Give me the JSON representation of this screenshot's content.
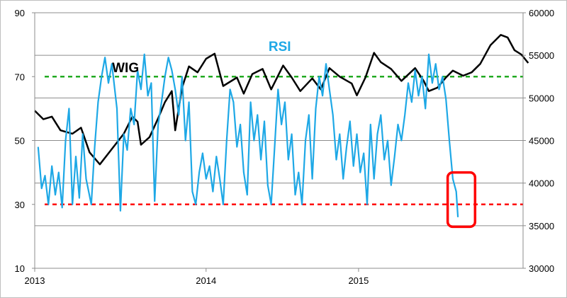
{
  "chart_data": {
    "type": "line",
    "x_axis": {
      "ticks": [
        "2013",
        "2014",
        "2015"
      ]
    },
    "y_left": {
      "ticks": [
        "10",
        "30",
        "50",
        "70",
        "90"
      ],
      "range": [
        10,
        90
      ]
    },
    "y_right": {
      "ticks": [
        "30000",
        "35000",
        "40000",
        "45000",
        "50000",
        "55000",
        "60000"
      ],
      "range": [
        30000,
        60000
      ]
    },
    "grid": true,
    "reference_lines": [
      {
        "axis": "left",
        "value": 70,
        "color": "#22aa22",
        "style": "dashed"
      },
      {
        "axis": "left",
        "value": 30,
        "color": "#ff0000",
        "style": "dashed"
      }
    ],
    "highlight_box": {
      "color": "#ff0000",
      "covers": "end of RSI series (2015)"
    },
    "series": [
      {
        "name": "WIG",
        "axis": "right",
        "color": "#000000",
        "points": [
          [
            2013.0,
            48500
          ],
          [
            2013.05,
            47500
          ],
          [
            2013.1,
            47800
          ],
          [
            2013.15,
            46200
          ],
          [
            2013.22,
            45800
          ],
          [
            2013.27,
            46500
          ],
          [
            2013.32,
            43600
          ],
          [
            2013.38,
            42200
          ],
          [
            2013.45,
            44000
          ],
          [
            2013.52,
            45800
          ],
          [
            2013.57,
            47800
          ],
          [
            2013.6,
            47200
          ],
          [
            2013.62,
            44500
          ],
          [
            2013.67,
            45400
          ],
          [
            2013.72,
            47600
          ],
          [
            2013.76,
            49500
          ],
          [
            2013.8,
            50800
          ],
          [
            2013.82,
            46200
          ],
          [
            2013.86,
            51200
          ],
          [
            2013.9,
            53700
          ],
          [
            2013.95,
            53000
          ],
          [
            2014.0,
            54600
          ],
          [
            2014.05,
            55200
          ],
          [
            2014.1,
            51400
          ],
          [
            2014.18,
            52400
          ],
          [
            2014.22,
            50500
          ],
          [
            2014.27,
            52800
          ],
          [
            2014.33,
            53400
          ],
          [
            2014.38,
            51000
          ],
          [
            2014.45,
            53800
          ],
          [
            2014.5,
            52400
          ],
          [
            2014.55,
            50800
          ],
          [
            2014.62,
            52300
          ],
          [
            2014.67,
            51000
          ],
          [
            2014.72,
            53500
          ],
          [
            2014.78,
            52500
          ],
          [
            2014.85,
            51700
          ],
          [
            2014.88,
            50300
          ],
          [
            2014.93,
            52400
          ],
          [
            2014.98,
            55300
          ],
          [
            2015.02,
            54200
          ],
          [
            2015.08,
            53400
          ],
          [
            2015.14,
            52000
          ],
          [
            2015.22,
            53500
          ],
          [
            2015.27,
            52000
          ],
          [
            2015.3,
            50800
          ],
          [
            2015.35,
            51200
          ],
          [
            2015.4,
            52400
          ],
          [
            2015.44,
            53200
          ],
          [
            2015.5,
            52600
          ],
          [
            2015.55,
            53000
          ],
          [
            2015.6,
            54000
          ],
          [
            2015.66,
            56200
          ],
          [
            2015.72,
            57400
          ],
          [
            2015.76,
            57100
          ],
          [
            2015.8,
            55600
          ],
          [
            2015.84,
            55100
          ],
          [
            2015.88,
            54100
          ]
        ]
      },
      {
        "name": "RSI",
        "axis": "left",
        "color": "#1ea8e6",
        "points": [
          [
            2013.02,
            48
          ],
          [
            2013.04,
            35
          ],
          [
            2013.06,
            39
          ],
          [
            2013.08,
            30
          ],
          [
            2013.1,
            42
          ],
          [
            2013.12,
            33
          ],
          [
            2013.14,
            40
          ],
          [
            2013.16,
            29
          ],
          [
            2013.18,
            50
          ],
          [
            2013.2,
            60
          ],
          [
            2013.22,
            30
          ],
          [
            2013.24,
            45
          ],
          [
            2013.26,
            32
          ],
          [
            2013.28,
            52
          ],
          [
            2013.3,
            38
          ],
          [
            2013.33,
            30
          ],
          [
            2013.35,
            48
          ],
          [
            2013.37,
            62
          ],
          [
            2013.39,
            70
          ],
          [
            2013.41,
            76
          ],
          [
            2013.43,
            68
          ],
          [
            2013.45,
            74
          ],
          [
            2013.48,
            60
          ],
          [
            2013.5,
            28
          ],
          [
            2013.52,
            52
          ],
          [
            2013.54,
            47
          ],
          [
            2013.56,
            60
          ],
          [
            2013.58,
            55
          ],
          [
            2013.6,
            72
          ],
          [
            2013.62,
            66
          ],
          [
            2013.64,
            77
          ],
          [
            2013.66,
            64
          ],
          [
            2013.68,
            68
          ],
          [
            2013.7,
            31
          ],
          [
            2013.72,
            55
          ],
          [
            2013.74,
            62
          ],
          [
            2013.76,
            70
          ],
          [
            2013.78,
            76
          ],
          [
            2013.8,
            72
          ],
          [
            2013.82,
            66
          ],
          [
            2013.84,
            58
          ],
          [
            2013.86,
            70
          ],
          [
            2013.88,
            50
          ],
          [
            2013.9,
            62
          ],
          [
            2013.92,
            34
          ],
          [
            2013.94,
            30
          ],
          [
            2013.96,
            40
          ],
          [
            2013.98,
            46
          ],
          [
            2014.0,
            38
          ],
          [
            2014.02,
            42
          ],
          [
            2014.04,
            34
          ],
          [
            2014.06,
            45
          ],
          [
            2014.08,
            38
          ],
          [
            2014.1,
            30
          ],
          [
            2014.12,
            50
          ],
          [
            2014.14,
            66
          ],
          [
            2014.16,
            62
          ],
          [
            2014.18,
            48
          ],
          [
            2014.2,
            55
          ],
          [
            2014.22,
            40
          ],
          [
            2014.24,
            33
          ],
          [
            2014.26,
            62
          ],
          [
            2014.28,
            50
          ],
          [
            2014.3,
            58
          ],
          [
            2014.32,
            44
          ],
          [
            2014.34,
            56
          ],
          [
            2014.36,
            36
          ],
          [
            2014.38,
            30
          ],
          [
            2014.4,
            48
          ],
          [
            2014.42,
            66
          ],
          [
            2014.44,
            55
          ],
          [
            2014.46,
            62
          ],
          [
            2014.48,
            44
          ],
          [
            2014.5,
            52
          ],
          [
            2014.52,
            33
          ],
          [
            2014.54,
            40
          ],
          [
            2014.56,
            30
          ],
          [
            2014.58,
            50
          ],
          [
            2014.6,
            58
          ],
          [
            2014.62,
            38
          ],
          [
            2014.64,
            60
          ],
          [
            2014.66,
            70
          ],
          [
            2014.68,
            64
          ],
          [
            2014.7,
            74
          ],
          [
            2014.72,
            66
          ],
          [
            2014.74,
            58
          ],
          [
            2014.76,
            44
          ],
          [
            2014.78,
            52
          ],
          [
            2014.8,
            38
          ],
          [
            2014.82,
            48
          ],
          [
            2014.84,
            56
          ],
          [
            2014.86,
            42
          ],
          [
            2014.88,
            52
          ],
          [
            2014.9,
            40
          ],
          [
            2014.92,
            46
          ],
          [
            2014.94,
            30
          ],
          [
            2014.96,
            55
          ],
          [
            2014.98,
            38
          ],
          [
            2015.0,
            52
          ],
          [
            2015.02,
            58
          ],
          [
            2015.04,
            44
          ],
          [
            2015.06,
            50
          ],
          [
            2015.08,
            36
          ],
          [
            2015.1,
            45
          ],
          [
            2015.12,
            55
          ],
          [
            2015.14,
            50
          ],
          [
            2015.16,
            58
          ],
          [
            2015.18,
            68
          ],
          [
            2015.2,
            62
          ],
          [
            2015.22,
            72
          ],
          [
            2015.24,
            64
          ],
          [
            2015.26,
            70
          ],
          [
            2015.28,
            60
          ],
          [
            2015.3,
            77
          ],
          [
            2015.32,
            68
          ],
          [
            2015.34,
            74
          ],
          [
            2015.36,
            66
          ],
          [
            2015.38,
            70
          ],
          [
            2015.4,
            63
          ],
          [
            2015.42,
            50
          ],
          [
            2015.44,
            38
          ],
          [
            2015.46,
            34
          ],
          [
            2015.47,
            26
          ]
        ]
      }
    ]
  },
  "x_map": {
    "2013": 0.0,
    "2014": 1.0,
    "2015": 1.89
  }
}
